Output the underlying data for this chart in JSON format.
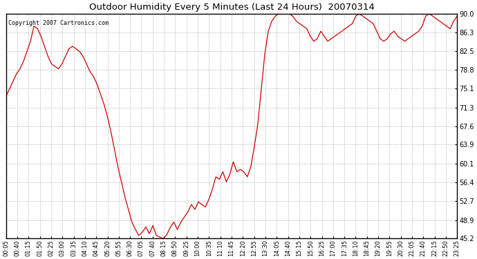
{
  "title": "Outdoor Humidity Every 5 Minutes (Last 24 Hours)  20070314",
  "copyright": "Copyright 2007 Cartronics.com",
  "line_color": "#cc0000",
  "bg_color": "#ffffff",
  "grid_color": "#aaaaaa",
  "yticks": [
    45.2,
    48.9,
    52.7,
    56.4,
    60.1,
    63.9,
    67.6,
    71.3,
    75.1,
    78.8,
    82.5,
    86.3,
    90.0
  ],
  "xtick_labels": [
    "00:05",
    "00:40",
    "01:15",
    "01:50",
    "02:25",
    "03:00",
    "03:35",
    "04:10",
    "04:45",
    "05:20",
    "05:55",
    "06:30",
    "07:05",
    "07:40",
    "08:15",
    "08:50",
    "09:25",
    "10:00",
    "10:35",
    "11:10",
    "11:45",
    "12:20",
    "12:55",
    "13:30",
    "14:05",
    "14:40",
    "15:15",
    "15:50",
    "16:25",
    "17:00",
    "17:35",
    "18:10",
    "18:45",
    "19:20",
    "19:55",
    "20:30",
    "21:05",
    "21:40",
    "22:15",
    "22:50",
    "23:25"
  ],
  "humidity_values": [
    73.5,
    75.0,
    76.5,
    78.0,
    79.0,
    80.5,
    82.5,
    84.5,
    87.5,
    87.0,
    85.5,
    83.5,
    81.5,
    80.0,
    79.5,
    79.0,
    80.0,
    81.5,
    83.0,
    83.5,
    83.0,
    82.5,
    81.5,
    80.0,
    78.5,
    77.5,
    76.0,
    74.0,
    72.0,
    69.5,
    66.5,
    63.0,
    59.5,
    56.5,
    53.5,
    51.0,
    48.5,
    47.0,
    45.8,
    46.5,
    47.5,
    46.2,
    47.8,
    45.8,
    45.5,
    45.2,
    46.0,
    47.5,
    48.5,
    47.0,
    48.5,
    49.5,
    50.5,
    52.0,
    51.0,
    52.5,
    52.0,
    51.5,
    53.0,
    55.0,
    57.5,
    57.0,
    58.5,
    56.5,
    58.0,
    60.5,
    58.5,
    59.0,
    58.5,
    57.5,
    59.5,
    63.5,
    68.0,
    75.0,
    82.0,
    86.5,
    88.5,
    89.5,
    90.0,
    90.0,
    90.0,
    90.0,
    89.5,
    88.5,
    88.0,
    87.5,
    87.0,
    85.5,
    84.5,
    85.0,
    86.5,
    85.5,
    84.5,
    85.0,
    85.5,
    86.0,
    86.5,
    87.0,
    87.5,
    88.0,
    89.5,
    90.0,
    89.5,
    89.0,
    88.5,
    88.0,
    86.5,
    85.0,
    84.5,
    85.0,
    86.0,
    86.5,
    85.5,
    85.0,
    84.5,
    85.0,
    85.5,
    86.0,
    86.5,
    87.5,
    89.5,
    90.0,
    89.5,
    89.0,
    88.5,
    88.0,
    87.5,
    87.0,
    88.5,
    89.5
  ]
}
